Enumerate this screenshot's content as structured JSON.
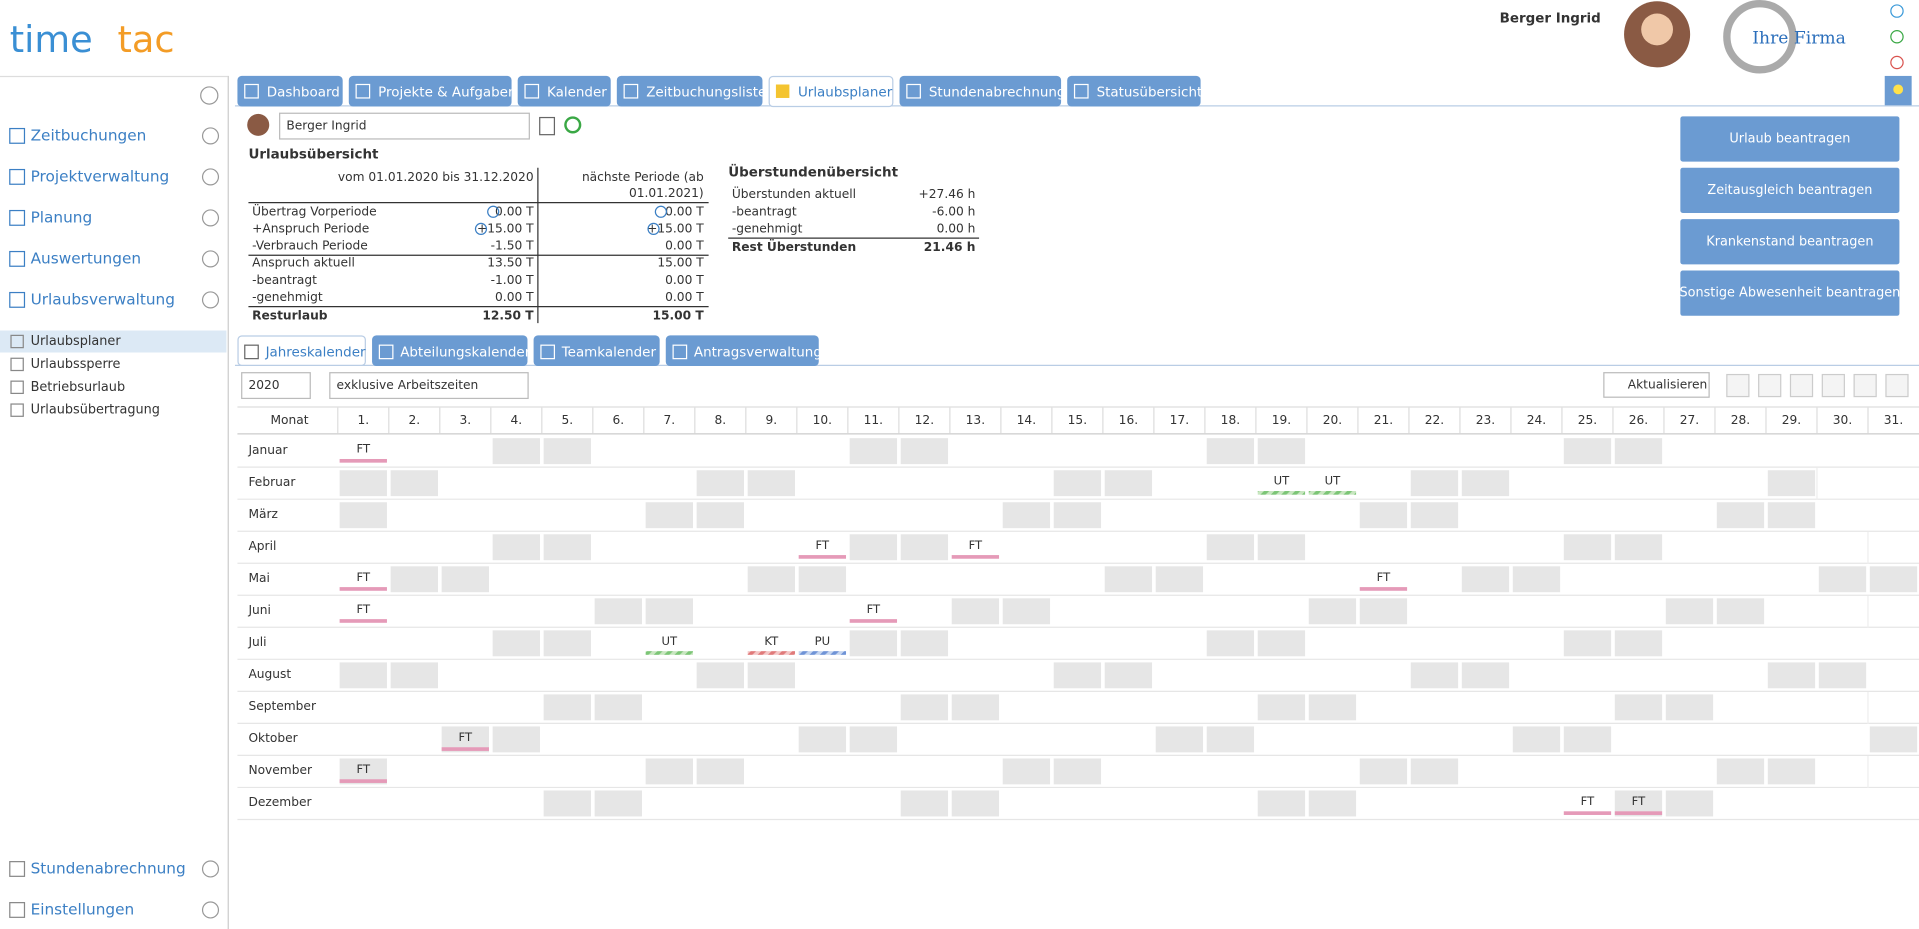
{
  "header": {
    "logo": [
      "time",
      "tac"
    ],
    "user": "Berger Ingrid",
    "company": "Ihre Firma"
  },
  "nav": {
    "main": [
      "Zeitbuchungen",
      "Projektverwaltung",
      "Planung",
      "Auswertungen",
      "Urlaubsverwaltung"
    ],
    "sub": [
      "Urlaubsplaner",
      "Urlaubssperre",
      "Betriebsurlaub",
      "Urlaubsübertragung"
    ],
    "bottom": [
      "Stundenabrechnung",
      "Einstellungen"
    ]
  },
  "tabs": [
    "Dashboard",
    "Projekte & Aufgaben",
    "Kalender",
    "Zeitbuchungsliste",
    "Urlaubsplaner",
    "Stundenabrechnung",
    "Statusübersicht"
  ],
  "user_select": "Berger Ingrid",
  "vacation": {
    "title": "Urlaubsübersicht",
    "col1": "vom 01.01.2020 bis 31.12.2020",
    "col2": [
      "nächste Periode (ab",
      "01.01.2021)"
    ],
    "rows": [
      [
        "Übertrag Vorperiode",
        "0.00 T",
        "0.00 T"
      ],
      [
        "+Anspruch Periode",
        "+15.00 T",
        "+15.00 T"
      ],
      [
        "-Verbrauch Periode",
        "-1.50 T",
        "0.00 T"
      ],
      [
        "Anspruch aktuell",
        "13.50 T",
        "15.00 T"
      ],
      [
        "-beantragt",
        "-1.00 T",
        "0.00 T"
      ],
      [
        "-genehmigt",
        "0.00 T",
        "0.00 T"
      ],
      [
        "Resturlaub",
        "12.50 T",
        "15.00 T"
      ]
    ]
  },
  "overtime": {
    "title": "Überstundenübersicht",
    "rows": [
      [
        "Überstunden aktuell",
        "+27.46 h"
      ],
      [
        "-beantragt",
        "-6.00 h"
      ],
      [
        "-genehmigt",
        "0.00 h"
      ],
      [
        "Rest Überstunden",
        "21.46 h"
      ]
    ]
  },
  "buttons": [
    "Urlaub beantragen",
    "Zeitausgleich beantragen",
    "Krankenstand beantragen",
    "Sonstige Abwesenheit beantragen"
  ],
  "subtabs": [
    "Jahreskalender",
    "Abteilungskalender",
    "Teamkalender",
    "Antragsverwaltung"
  ],
  "controls": {
    "year": "2020",
    "mode": "exklusive Arbeitszeiten",
    "refresh": "Aktualisieren"
  },
  "calendar": {
    "month_header": "Monat",
    "days": [
      "1.",
      "2.",
      "3.",
      "4.",
      "5.",
      "6.",
      "7.",
      "8.",
      "9.",
      "10.",
      "11.",
      "12.",
      "13.",
      "14.",
      "15.",
      "16.",
      "17.",
      "18.",
      "19.",
      "20.",
      "21.",
      "22.",
      "23.",
      "24.",
      "25.",
      "26.",
      "27.",
      "28.",
      "29.",
      "30.",
      "31."
    ],
    "months": [
      {
        "name": "Januar",
        "entries": [
          {
            "day": 1,
            "code": "FT"
          }
        ]
      },
      {
        "name": "Februar",
        "entries": [
          {
            "day": 19,
            "code": "UT"
          },
          {
            "day": 20,
            "code": "UT"
          }
        ]
      },
      {
        "name": "März",
        "entries": []
      },
      {
        "name": "April",
        "entries": [
          {
            "day": 10,
            "code": "FT"
          },
          {
            "day": 13,
            "code": "FT"
          }
        ]
      },
      {
        "name": "Mai",
        "entries": [
          {
            "day": 1,
            "code": "FT"
          },
          {
            "day": 21,
            "code": "FT"
          }
        ]
      },
      {
        "name": "Juni",
        "entries": [
          {
            "day": 1,
            "code": "FT"
          },
          {
            "day": 11,
            "code": "FT"
          }
        ]
      },
      {
        "name": "Juli",
        "entries": [
          {
            "day": 7,
            "code": "UT"
          },
          {
            "day": 9,
            "code": "KT"
          },
          {
            "day": 10,
            "code": "PU"
          }
        ]
      },
      {
        "name": "August",
        "entries": []
      },
      {
        "name": "September",
        "entries": []
      },
      {
        "name": "Oktober",
        "entries": [
          {
            "day": 3,
            "code": "FT"
          }
        ]
      },
      {
        "name": "November",
        "entries": [
          {
            "day": 1,
            "code": "FT"
          }
        ]
      },
      {
        "name": "Dezember",
        "entries": [
          {
            "day": 25,
            "code": "FT"
          },
          {
            "day": 26,
            "code": "FT"
          }
        ]
      }
    ]
  }
}
